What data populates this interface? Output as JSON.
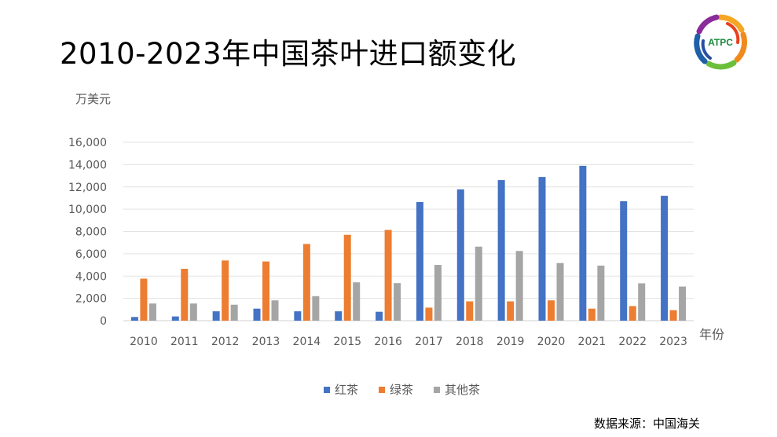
{
  "title": "2010-2023年中国茶叶进口额变化",
  "source": "数据来源：中国海关",
  "logo_text": "ATPC",
  "chart_data": {
    "type": "bar",
    "title": "2010-2023年中国茶叶进口额变化",
    "ylabel": "万美元",
    "xlabel": "年份",
    "ylim": [
      0,
      16000
    ],
    "yticks": [
      "0",
      "2,000",
      "4,000",
      "6,000",
      "8,000",
      "10,000",
      "12,000",
      "14,000",
      "16,000"
    ],
    "ytick_values": [
      0,
      2000,
      4000,
      6000,
      8000,
      10000,
      12000,
      14000,
      16000
    ],
    "grid": true,
    "legend_position": "bottom",
    "categories": [
      "2010",
      "2011",
      "2012",
      "2013",
      "2014",
      "2015",
      "2016",
      "2017",
      "2018",
      "2019",
      "2020",
      "2021",
      "2022",
      "2023"
    ],
    "series": [
      {
        "name": "红茶",
        "color": "#4472C4",
        "values": [
          330,
          380,
          840,
          1080,
          840,
          840,
          800,
          10640,
          11770,
          12610,
          12890,
          13890,
          10710,
          11200
        ]
      },
      {
        "name": "绿茶",
        "color": "#ED7D31",
        "values": [
          3770,
          4650,
          5400,
          5310,
          6880,
          7700,
          8140,
          1170,
          1730,
          1730,
          1820,
          1080,
          1310,
          940
        ]
      },
      {
        "name": "其他茶",
        "color": "#A5A5A5",
        "values": [
          1540,
          1540,
          1430,
          1820,
          2200,
          3440,
          3370,
          5000,
          6640,
          6250,
          5170,
          4940,
          3350,
          3060
        ]
      }
    ]
  }
}
